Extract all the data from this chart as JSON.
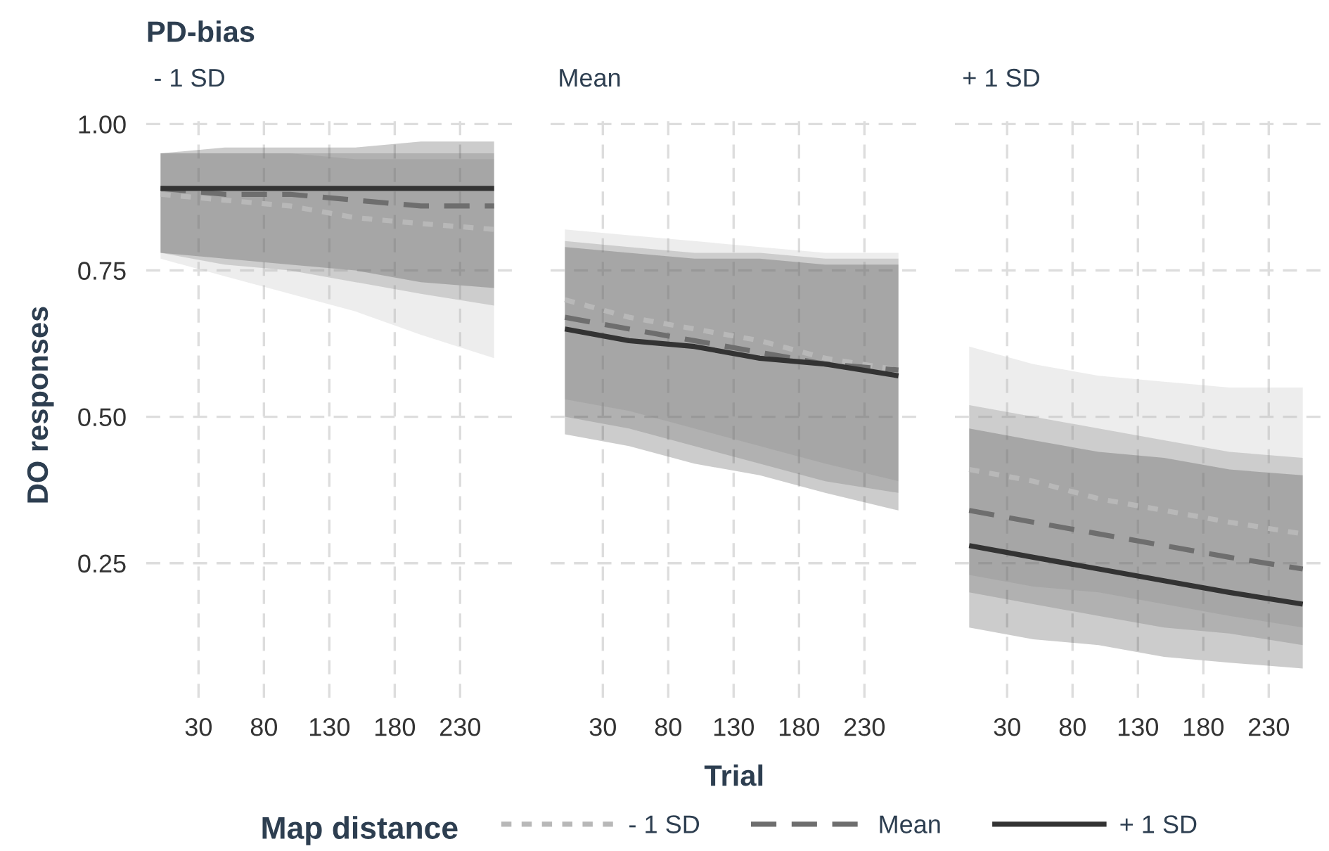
{
  "chart_data": [
    {
      "type": "line",
      "title": "PD-bias",
      "subtitle": "- 1 SD",
      "ylabel": "DO responses",
      "legend": "bottom",
      "legend_title": "Map distance",
      "grid": true,
      "xlim": [
        -10,
        271
      ],
      "xticks": [
        30,
        80,
        130,
        180,
        230
      ],
      "ylim": [
        0.02,
        1.02
      ],
      "yticks": [
        {
          "value": 0.25,
          "label": "0.25"
        },
        {
          "value": 0.5,
          "label": "0.50"
        },
        {
          "value": 0.75,
          "label": "0.75"
        },
        {
          "value": 1.0,
          "label": "1.00"
        }
      ],
      "x": [
        1,
        50,
        100,
        150,
        200,
        256
      ],
      "series": [
        {
          "name": "- 1 SD",
          "color": "#b8b8b8",
          "line_style": "dotted",
          "values": [
            0.88,
            0.87,
            0.86,
            0.84,
            0.83,
            0.82
          ],
          "lower": [
            0.77,
            0.74,
            0.71,
            0.68,
            0.64,
            0.6
          ],
          "upper": [
            0.95,
            0.95,
            0.95,
            0.94,
            0.94,
            0.94
          ]
        },
        {
          "name": "Mean",
          "color": "#6e6e6e",
          "line_style": "dashed",
          "values": [
            0.89,
            0.88,
            0.88,
            0.87,
            0.86,
            0.86
          ],
          "lower": [
            0.78,
            0.76,
            0.75,
            0.73,
            0.71,
            0.69
          ],
          "upper": [
            0.95,
            0.95,
            0.95,
            0.95,
            0.95,
            0.95
          ]
        },
        {
          "name": "+ 1 SD",
          "color": "#333333",
          "line_style": "solid",
          "values": [
            0.89,
            0.89,
            0.89,
            0.89,
            0.89,
            0.89
          ],
          "lower": [
            0.78,
            0.77,
            0.76,
            0.75,
            0.73,
            0.72
          ],
          "upper": [
            0.95,
            0.96,
            0.96,
            0.96,
            0.97,
            0.97
          ]
        }
      ]
    },
    {
      "type": "line",
      "subtitle": "Mean",
      "xlabel": "Trial",
      "grid": true,
      "tick_labels": "x",
      "xlim": [
        -10,
        271
      ],
      "xticks": [
        30,
        80,
        130,
        180,
        230
      ],
      "ylim": [
        0.02,
        1.02
      ],
      "yticks": [
        0.25,
        0.5,
        0.75,
        1.0
      ],
      "x": [
        1,
        50,
        100,
        150,
        200,
        256
      ],
      "series": [
        {
          "color": "#b8b8b8",
          "line_style": "dotted",
          "values": [
            0.7,
            0.67,
            0.65,
            0.63,
            0.6,
            0.58
          ],
          "lower": [
            0.53,
            0.51,
            0.48,
            0.45,
            0.42,
            0.39
          ],
          "upper": [
            0.82,
            0.81,
            0.8,
            0.79,
            0.78,
            0.78
          ]
        },
        {
          "color": "#6e6e6e",
          "line_style": "dashed",
          "values": [
            0.67,
            0.65,
            0.63,
            0.61,
            0.59,
            0.58
          ],
          "lower": [
            0.5,
            0.48,
            0.45,
            0.42,
            0.39,
            0.37
          ],
          "upper": [
            0.8,
            0.79,
            0.78,
            0.78,
            0.77,
            0.77
          ]
        },
        {
          "color": "#333333",
          "line_style": "solid",
          "values": [
            0.65,
            0.63,
            0.62,
            0.6,
            0.59,
            0.57
          ],
          "lower": [
            0.47,
            0.45,
            0.42,
            0.4,
            0.37,
            0.34
          ],
          "upper": [
            0.79,
            0.78,
            0.77,
            0.77,
            0.76,
            0.76
          ]
        }
      ]
    },
    {
      "type": "line",
      "subtitle": "+ 1 SD",
      "grid": true,
      "tick_labels": "x",
      "xlim": [
        -10,
        271
      ],
      "xticks": [
        30,
        80,
        130,
        180,
        230
      ],
      "ylim": [
        0.02,
        1.02
      ],
      "yticks": [
        0.25,
        0.5,
        0.75,
        1.0
      ],
      "x": [
        1,
        50,
        100,
        150,
        200,
        256
      ],
      "series": [
        {
          "color": "#b8b8b8",
          "line_style": "dotted",
          "values": [
            0.41,
            0.39,
            0.36,
            0.34,
            0.32,
            0.3
          ],
          "lower": [
            0.23,
            0.21,
            0.2,
            0.18,
            0.16,
            0.14
          ],
          "upper": [
            0.62,
            0.59,
            0.57,
            0.56,
            0.55,
            0.55
          ]
        },
        {
          "color": "#6e6e6e",
          "line_style": "dashed",
          "values": [
            0.34,
            0.32,
            0.3,
            0.28,
            0.26,
            0.24
          ],
          "lower": [
            0.2,
            0.18,
            0.16,
            0.14,
            0.13,
            0.11
          ],
          "upper": [
            0.52,
            0.5,
            0.48,
            0.46,
            0.44,
            0.43
          ]
        },
        {
          "color": "#333333",
          "line_style": "solid",
          "values": [
            0.28,
            0.26,
            0.24,
            0.22,
            0.2,
            0.18
          ],
          "lower": [
            0.14,
            0.12,
            0.11,
            0.09,
            0.08,
            0.07
          ],
          "upper": [
            0.48,
            0.46,
            0.44,
            0.43,
            0.41,
            0.4
          ]
        }
      ]
    }
  ]
}
